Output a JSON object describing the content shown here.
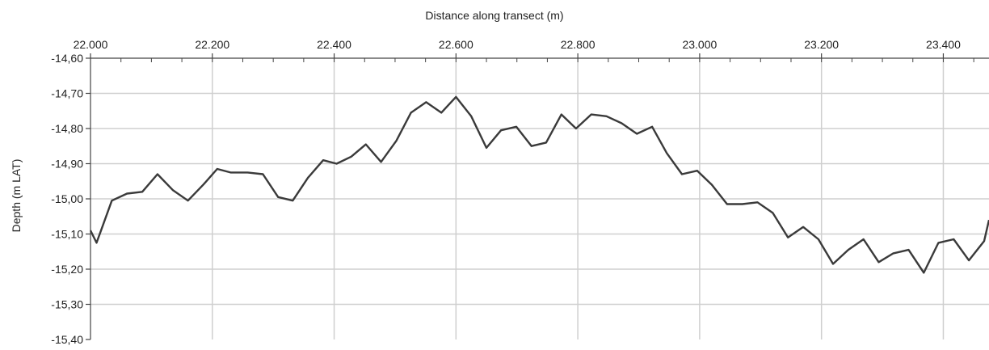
{
  "chart_data": {
    "type": "line",
    "xlabel": "Distance along transect (m)",
    "ylabel": "Depth (m LAT)",
    "xlim": [
      22000,
      23475
    ],
    "ylim": [
      -15.4,
      -14.6
    ],
    "x_ticks": [
      22000,
      22200,
      22400,
      22600,
      22800,
      23000,
      23200,
      23400
    ],
    "x_tick_labels": [
      "22.000",
      "22.200",
      "22.400",
      "22.600",
      "22.800",
      "23.000",
      "23.200",
      "23.400"
    ],
    "y_ticks": [
      -14.6,
      -14.7,
      -14.8,
      -14.9,
      -15.0,
      -15.1,
      -15.2,
      -15.3,
      -15.4
    ],
    "y_tick_labels": [
      "-14,60",
      "-14,70",
      "-14,80",
      "-14,90",
      "-15,00",
      "-15,10",
      "-15,20",
      "-15,30",
      "-15,40"
    ],
    "x_axis_position": "top",
    "grid": true,
    "line_color": "#3a3a3a",
    "grid_color": "#cfcfcf",
    "series": [
      {
        "x": [
          22000,
          22010,
          22035,
          22060,
          22085,
          22110,
          22135,
          22160,
          22185,
          22208,
          22230,
          22258,
          22283,
          22308,
          22332,
          22357,
          22382,
          22404,
          22428,
          22452,
          22477,
          22502,
          22526,
          22551,
          22576,
          22600,
          22625,
          22650,
          22674,
          22699,
          22724,
          22748,
          22773,
          22797,
          22822,
          22847,
          22872,
          22897,
          22922,
          22946,
          22971,
          22996,
          23020,
          23045,
          23070,
          23095,
          23120,
          23145,
          23170,
          23195,
          23219,
          23244,
          23269,
          23294,
          23318,
          23343,
          23368,
          23392,
          23417,
          23442,
          23467,
          23475
        ],
        "y": [
          -15.09,
          -15.125,
          -15.005,
          -14.985,
          -14.98,
          -14.93,
          -14.975,
          -15.005,
          -14.96,
          -14.915,
          -14.925,
          -14.925,
          -14.93,
          -14.995,
          -15.005,
          -14.94,
          -14.89,
          -14.9,
          -14.88,
          -14.845,
          -14.895,
          -14.835,
          -14.755,
          -14.725,
          -14.755,
          -14.71,
          -14.765,
          -14.855,
          -14.805,
          -14.795,
          -14.85,
          -14.84,
          -14.76,
          -14.8,
          -14.76,
          -14.765,
          -14.785,
          -14.815,
          -14.795,
          -14.87,
          -14.93,
          -14.92,
          -14.96,
          -15.015,
          -15.015,
          -15.01,
          -15.04,
          -15.11,
          -15.08,
          -15.115,
          -15.185,
          -15.145,
          -15.115,
          -15.18,
          -15.155,
          -15.145,
          -15.21,
          -15.125,
          -15.115,
          -15.175,
          -15.12,
          -15.06
        ]
      }
    ]
  }
}
